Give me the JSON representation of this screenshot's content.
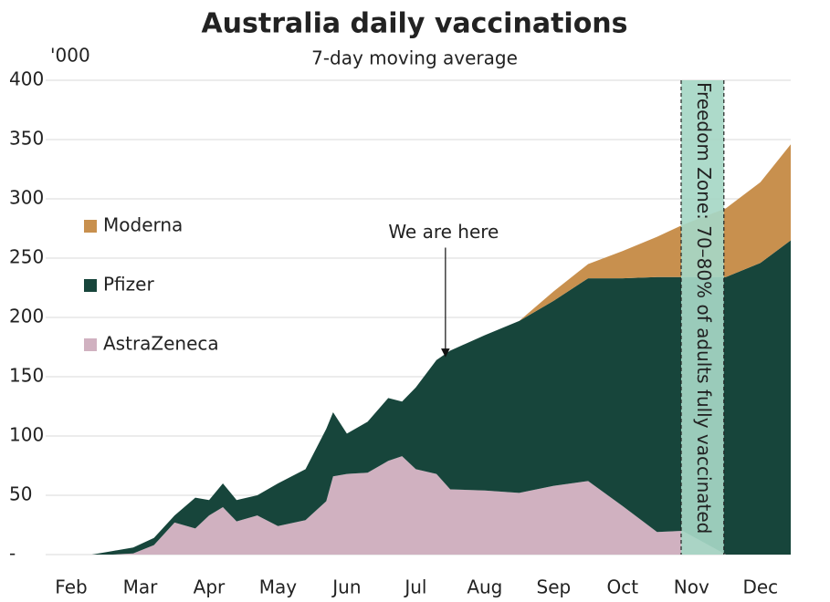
{
  "chart_data": {
    "type": "stacked_area",
    "title": "Australia daily vaccinations",
    "subtitle": "7-day moving average",
    "y_label": "'000",
    "x": [
      0.3,
      0.6,
      0.9,
      1.2,
      1.5,
      1.8,
      2.0,
      2.2,
      2.4,
      2.7,
      3.0,
      3.4,
      3.7,
      3.8,
      4.0,
      4.3,
      4.6,
      4.8,
      5.0,
      5.3,
      5.5,
      6.0,
      6.5,
      7.0,
      7.5,
      8.0,
      8.5,
      8.87,
      9.5,
      10.0,
      10.44
    ],
    "xlim": [
      0,
      10.44
    ],
    "xticks": [
      {
        "value": 0,
        "label": "Feb"
      },
      {
        "value": 1,
        "label": "Mar"
      },
      {
        "value": 2,
        "label": "Apr"
      },
      {
        "value": 3,
        "label": "May"
      },
      {
        "value": 4,
        "label": "Jun"
      },
      {
        "value": 5,
        "label": "Jul"
      },
      {
        "value": 6,
        "label": "Aug"
      },
      {
        "value": 7,
        "label": "Sep"
      },
      {
        "value": 8,
        "label": "Oct"
      },
      {
        "value": 9,
        "label": "Nov"
      },
      {
        "value": 10,
        "label": "Dec"
      }
    ],
    "ylim": [
      0,
      400
    ],
    "yticks": [
      {
        "value": 0,
        "label": "-"
      },
      50,
      100,
      150,
      200,
      250,
      300,
      350,
      400
    ],
    "grid": true,
    "series": [
      {
        "name": "AstraZeneca",
        "color": "#d0b1c0",
        "values": [
          0,
          0,
          1,
          8,
          27,
          22,
          33,
          40,
          28,
          33,
          24,
          29,
          45,
          66,
          68,
          69,
          79,
          83,
          72,
          68,
          55,
          54,
          52,
          58,
          62,
          41,
          19,
          20,
          0,
          0,
          0
        ]
      },
      {
        "name": "Pfizer",
        "color": "#17453b",
        "values": [
          0,
          3,
          5,
          6,
          6,
          26,
          13,
          20,
          18,
          17,
          36,
          43,
          61,
          54,
          34,
          43,
          53,
          46,
          69,
          96,
          117,
          131,
          145,
          156,
          171,
          192,
          215,
          214,
          234,
          246,
          265
        ]
      },
      {
        "name": "Moderna",
        "color": "#c8904e",
        "values": [
          0,
          0,
          0,
          0,
          0,
          0,
          0,
          0,
          0,
          0,
          0,
          0,
          0,
          0,
          0,
          0,
          0,
          0,
          0,
          0,
          0,
          0,
          0,
          8,
          12,
          23,
          34,
          44,
          58,
          68,
          81
        ]
      }
    ],
    "annotations": [
      {
        "text": "We are here",
        "x": 5.43,
        "y": 165
      }
    ],
    "band": {
      "label": "Freedom Zone: 70–80% of adults fully vaccinated",
      "x": [
        8.85,
        9.47
      ],
      "color": "#a6d7c6"
    }
  }
}
